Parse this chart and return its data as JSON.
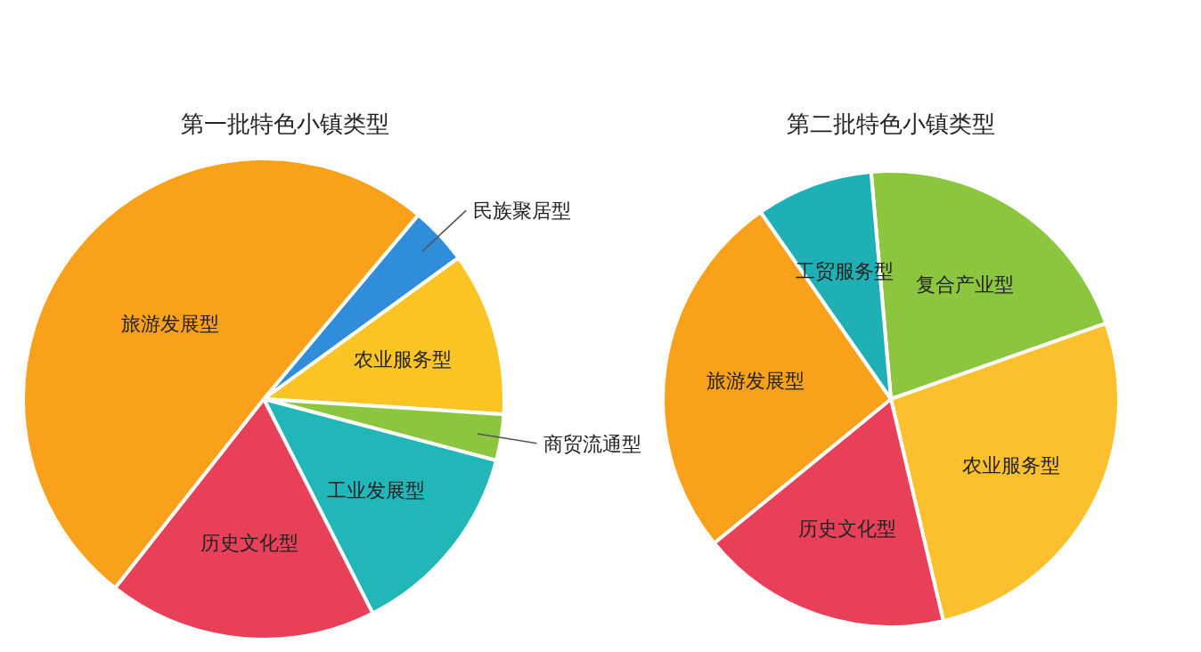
{
  "chart_data": [
    {
      "type": "pie",
      "title": "第一批特色小镇类型",
      "categories": [
        "民族聚居型",
        "农业服务型",
        "商贸流通型",
        "工业发展型",
        "历史文化型",
        "旅游发展型"
      ],
      "values": [
        3.9,
        11.0,
        3.1,
        13.4,
        18.1,
        50.5
      ],
      "colors": [
        "#2f8ddb",
        "#fac524",
        "#8cc63f",
        "#21b6b8",
        "#e9405a",
        "#f9a11b"
      ]
    },
    {
      "type": "pie",
      "title": "第二批特色小镇类型",
      "categories": [
        "复合产业型",
        "农业服务型",
        "历史文化型",
        "旅游发展型",
        "工贸服务型"
      ],
      "values": [
        21.0,
        26.7,
        17.8,
        26.2,
        8.3
      ],
      "colors": [
        "#8cc63f",
        "#fbc02d",
        "#e9405a",
        "#f9a11b",
        "#1fb0b5"
      ]
    }
  ]
}
